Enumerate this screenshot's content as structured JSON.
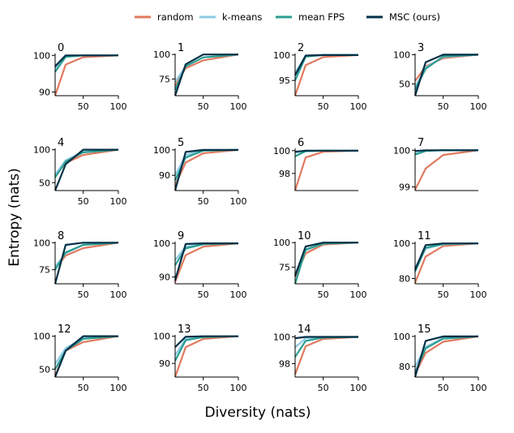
{
  "figure": {
    "xlabel": "Diversity (nats)",
    "ylabel": "Entropy (nats)"
  },
  "legend": {
    "placement": "top-center",
    "items": [
      {
        "label": "random",
        "color": "#e07a5f"
      },
      {
        "label": "k-means",
        "color": "#8ecae6"
      },
      {
        "label": "mean FPS",
        "color": "#2a9d8f"
      },
      {
        "label": "MSC (ours)",
        "color": "#023047"
      }
    ]
  },
  "chart_data": [
    {
      "type": "line",
      "title": "0",
      "x": [
        10,
        25,
        50,
        100
      ],
      "xticks": [
        50,
        100
      ],
      "yticks": [
        90,
        100
      ],
      "ylim": [
        89,
        100.5
      ],
      "series": [
        {
          "name": "random",
          "values": [
            89,
            97.5,
            99.5,
            100
          ]
        },
        {
          "name": "k-means",
          "values": [
            96.5,
            99.8,
            100,
            100
          ]
        },
        {
          "name": "mean FPS",
          "values": [
            95.5,
            99.6,
            100,
            100
          ]
        },
        {
          "name": "MSC (ours)",
          "values": [
            97,
            100,
            100,
            100
          ]
        }
      ]
    },
    {
      "type": "line",
      "title": "1",
      "x": [
        10,
        25,
        50,
        100
      ],
      "xticks": [
        50,
        100
      ],
      "yticks": [
        75,
        100
      ],
      "ylim": [
        58,
        101
      ],
      "series": [
        {
          "name": "random",
          "values": [
            68,
            86,
            94,
            100
          ]
        },
        {
          "name": "k-means",
          "values": [
            72,
            88,
            97,
            100
          ]
        },
        {
          "name": "mean FPS",
          "values": [
            64,
            88,
            97,
            100
          ]
        },
        {
          "name": "MSC (ours)",
          "values": [
            58,
            90,
            100,
            100
          ]
        }
      ]
    },
    {
      "type": "line",
      "title": "2",
      "x": [
        10,
        25,
        50,
        100
      ],
      "xticks": [
        50,
        100
      ],
      "yticks": [
        95,
        100
      ],
      "ylim": [
        92,
        100.3
      ],
      "series": [
        {
          "name": "random",
          "values": [
            92,
            98,
            99.6,
            100
          ]
        },
        {
          "name": "k-means",
          "values": [
            96.5,
            99.8,
            100,
            100
          ]
        },
        {
          "name": "mean FPS",
          "values": [
            95,
            99.7,
            100,
            100
          ]
        },
        {
          "name": "MSC (ours)",
          "values": [
            96,
            99.9,
            100,
            100
          ]
        }
      ]
    },
    {
      "type": "line",
      "title": "3",
      "x": [
        10,
        25,
        50,
        100
      ],
      "xticks": [
        50,
        100
      ],
      "yticks": [
        50,
        100
      ],
      "ylim": [
        30,
        102
      ],
      "series": [
        {
          "name": "random",
          "values": [
            55,
            80,
            94,
            100
          ]
        },
        {
          "name": "k-means",
          "values": [
            45,
            78,
            96,
            100
          ]
        },
        {
          "name": "mean FPS",
          "values": [
            40,
            76,
            97,
            100
          ]
        },
        {
          "name": "MSC (ours)",
          "values": [
            30,
            87,
            100,
            100
          ]
        }
      ]
    },
    {
      "type": "line",
      "title": "4",
      "x": [
        10,
        25,
        50,
        100
      ],
      "xticks": [
        50,
        100
      ],
      "yticks": [
        50,
        100
      ],
      "ylim": [
        38,
        102
      ],
      "series": [
        {
          "name": "random",
          "values": [
            60,
            80,
            92,
            100
          ]
        },
        {
          "name": "k-means",
          "values": [
            62,
            84,
            97,
            100
          ]
        },
        {
          "name": "mean FPS",
          "values": [
            58,
            82,
            96,
            100
          ]
        },
        {
          "name": "MSC (ours)",
          "values": [
            38,
            78,
            100,
            100
          ]
        }
      ]
    },
    {
      "type": "line",
      "title": "5",
      "x": [
        10,
        25,
        50,
        100
      ],
      "xticks": [
        50,
        100
      ],
      "yticks": [
        90,
        100
      ],
      "ylim": [
        84,
        100.6
      ],
      "series": [
        {
          "name": "random",
          "values": [
            86,
            95,
            98.7,
            100
          ]
        },
        {
          "name": "k-means",
          "values": [
            90,
            98,
            99.8,
            100
          ]
        },
        {
          "name": "mean FPS",
          "values": [
            88,
            97,
            99.7,
            100
          ]
        },
        {
          "name": "MSC (ours)",
          "values": [
            84,
            99.2,
            100,
            100
          ]
        }
      ]
    },
    {
      "type": "line",
      "title": "6",
      "x": [
        10,
        25,
        50,
        100
      ],
      "xticks": [],
      "yticks": [
        98,
        100
      ],
      "ylim": [
        96.5,
        100.2
      ],
      "series": [
        {
          "name": "random",
          "values": [
            96.5,
            99.4,
            99.9,
            100
          ]
        },
        {
          "name": "k-means",
          "values": [
            99.8,
            100,
            100,
            100
          ]
        },
        {
          "name": "mean FPS",
          "values": [
            99.5,
            99.95,
            100,
            100
          ]
        },
        {
          "name": "MSC (ours)",
          "values": [
            99.9,
            100,
            100,
            100
          ]
        }
      ]
    },
    {
      "type": "line",
      "title": "7",
      "x": [
        10,
        25,
        50,
        100
      ],
      "xticks": [],
      "yticks": [
        99,
        100
      ],
      "ylim": [
        98.9,
        100.05
      ],
      "series": [
        {
          "name": "random",
          "values": [
            98.92,
            99.5,
            99.87,
            100
          ]
        },
        {
          "name": "k-means",
          "values": [
            99.92,
            99.99,
            100,
            100
          ]
        },
        {
          "name": "mean FPS",
          "values": [
            99.88,
            99.98,
            100,
            100
          ]
        },
        {
          "name": "MSC (ours)",
          "values": [
            99.98,
            100,
            100,
            100
          ]
        }
      ]
    },
    {
      "type": "line",
      "title": "8",
      "x": [
        10,
        25,
        50,
        100
      ],
      "xticks": [
        50,
        100
      ],
      "yticks": [
        75,
        100
      ],
      "ylim": [
        62,
        101
      ],
      "series": [
        {
          "name": "random",
          "values": [
            76,
            88,
            95,
            100
          ]
        },
        {
          "name": "k-means",
          "values": [
            78,
            90,
            98,
            100
          ]
        },
        {
          "name": "mean FPS",
          "values": [
            75,
            91,
            98,
            100
          ]
        },
        {
          "name": "MSC (ours)",
          "values": [
            62,
            98,
            100,
            100
          ]
        }
      ]
    },
    {
      "type": "line",
      "title": "9",
      "x": [
        10,
        25,
        50,
        100
      ],
      "xticks": [
        50,
        100
      ],
      "yticks": [
        90,
        100
      ],
      "ylim": [
        88,
        100.5
      ],
      "series": [
        {
          "name": "random",
          "values": [
            88.5,
            96.5,
            99,
            100
          ]
        },
        {
          "name": "k-means",
          "values": [
            95,
            99,
            99.8,
            100
          ]
        },
        {
          "name": "mean FPS",
          "values": [
            93.5,
            98.5,
            99.7,
            100
          ]
        },
        {
          "name": "MSC (ours)",
          "values": [
            89,
            99.8,
            100,
            100
          ]
        }
      ]
    },
    {
      "type": "line",
      "title": "10",
      "x": [
        10,
        25,
        50,
        100
      ],
      "xticks": [
        50,
        100
      ],
      "yticks": [
        75,
        100
      ],
      "ylim": [
        58,
        101
      ],
      "series": [
        {
          "name": "random",
          "values": [
            65,
            89,
            98,
            100
          ]
        },
        {
          "name": "k-means",
          "values": [
            68,
            92,
            99,
            100
          ]
        },
        {
          "name": "mean FPS",
          "values": [
            58,
            93,
            99,
            100
          ]
        },
        {
          "name": "MSC (ours)",
          "values": [
            66,
            96,
            100,
            100
          ]
        }
      ]
    },
    {
      "type": "line",
      "title": "11",
      "x": [
        10,
        25,
        50,
        100
      ],
      "xticks": [
        50,
        100
      ],
      "yticks": [
        80,
        100
      ],
      "ylim": [
        77,
        101
      ],
      "series": [
        {
          "name": "random",
          "values": [
            77.5,
            92.5,
            98.5,
            100
          ]
        },
        {
          "name": "k-means",
          "values": [
            86,
            97,
            99.5,
            100
          ]
        },
        {
          "name": "mean FPS",
          "values": [
            84,
            97.5,
            99.7,
            100
          ]
        },
        {
          "name": "MSC (ours)",
          "values": [
            85,
            99,
            100,
            100
          ]
        }
      ]
    },
    {
      "type": "line",
      "title": "12",
      "x": [
        10,
        25,
        50,
        100
      ],
      "xticks": [
        50,
        100
      ],
      "yticks": [
        50,
        100
      ],
      "ylim": [
        38,
        102
      ],
      "series": [
        {
          "name": "random",
          "values": [
            40,
            78,
            91,
            100
          ]
        },
        {
          "name": "k-means",
          "values": [
            58,
            82,
            97,
            100
          ]
        },
        {
          "name": "mean FPS",
          "values": [
            50,
            78,
            96,
            100
          ]
        },
        {
          "name": "MSC (ours)",
          "values": [
            38,
            78,
            100,
            100
          ]
        }
      ]
    },
    {
      "type": "line",
      "title": "13",
      "x": [
        10,
        25,
        50,
        100
      ],
      "xticks": [
        50,
        100
      ],
      "yticks": [
        90,
        100
      ],
      "ylim": [
        85,
        100.5
      ],
      "series": [
        {
          "name": "random",
          "values": [
            85,
            96,
            99,
            100
          ]
        },
        {
          "name": "k-means",
          "values": [
            93,
            99,
            99.8,
            100
          ]
        },
        {
          "name": "mean FPS",
          "values": [
            91,
            98.5,
            99.7,
            100
          ]
        },
        {
          "name": "MSC (ours)",
          "values": [
            96,
            99.8,
            100,
            100
          ]
        }
      ]
    },
    {
      "type": "line",
      "title": "14",
      "x": [
        10,
        25,
        50,
        100
      ],
      "xticks": [
        50,
        100
      ],
      "yticks": [
        98,
        100
      ],
      "ylim": [
        97,
        100.15
      ],
      "series": [
        {
          "name": "random",
          "values": [
            97.2,
            99.3,
            99.85,
            100
          ]
        },
        {
          "name": "k-means",
          "values": [
            99.2,
            99.9,
            100,
            100
          ]
        },
        {
          "name": "mean FPS",
          "values": [
            98.5,
            99.7,
            99.95,
            100
          ]
        },
        {
          "name": "MSC (ours)",
          "values": [
            99.9,
            100,
            100,
            100
          ]
        }
      ]
    },
    {
      "type": "line",
      "title": "15",
      "x": [
        10,
        25,
        50,
        100
      ],
      "xticks": [
        50,
        100
      ],
      "yticks": [
        80,
        100
      ],
      "ylim": [
        73,
        101
      ],
      "series": [
        {
          "name": "random",
          "values": [
            75,
            89,
            96.5,
            100
          ]
        },
        {
          "name": "k-means",
          "values": [
            80,
            93,
            99,
            100
          ]
        },
        {
          "name": "mean FPS",
          "values": [
            76,
            92,
            98.5,
            100
          ]
        },
        {
          "name": "MSC (ours)",
          "values": [
            73,
            97,
            100,
            100
          ]
        }
      ]
    }
  ]
}
